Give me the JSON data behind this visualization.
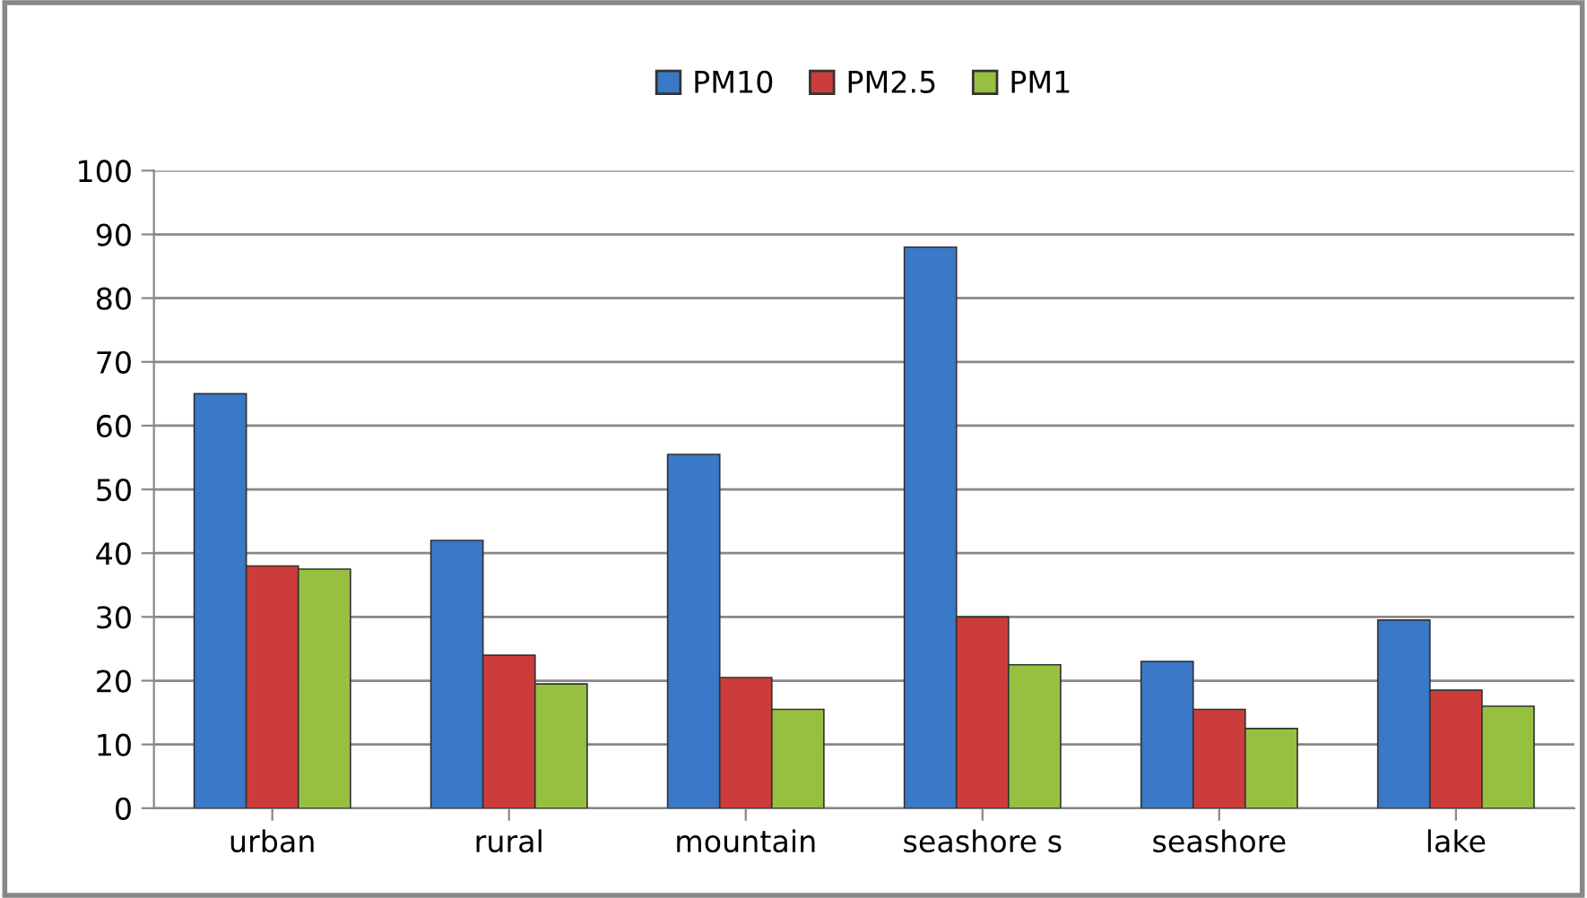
{
  "chart_data": {
    "type": "bar",
    "categories": [
      "urban",
      "rural",
      "mountain",
      "seashore s",
      "seashore",
      "lake"
    ],
    "series": [
      {
        "name": "PM10",
        "color": "#3a78c8",
        "values": [
          65,
          42,
          55.5,
          88,
          23,
          29.5
        ]
      },
      {
        "name": "PM2.5",
        "color": "#cc3c3a",
        "values": [
          38,
          24,
          20.5,
          30,
          15.5,
          18.5
        ]
      },
      {
        "name": "PM1",
        "color": "#98c040",
        "values": [
          37.5,
          19.5,
          15.5,
          22.5,
          12.5,
          16
        ]
      }
    ],
    "ylim": [
      0,
      100
    ],
    "yticks": [
      0,
      10,
      20,
      30,
      40,
      50,
      60,
      70,
      80,
      90,
      100
    ],
    "grid": "y",
    "legend": "top"
  }
}
